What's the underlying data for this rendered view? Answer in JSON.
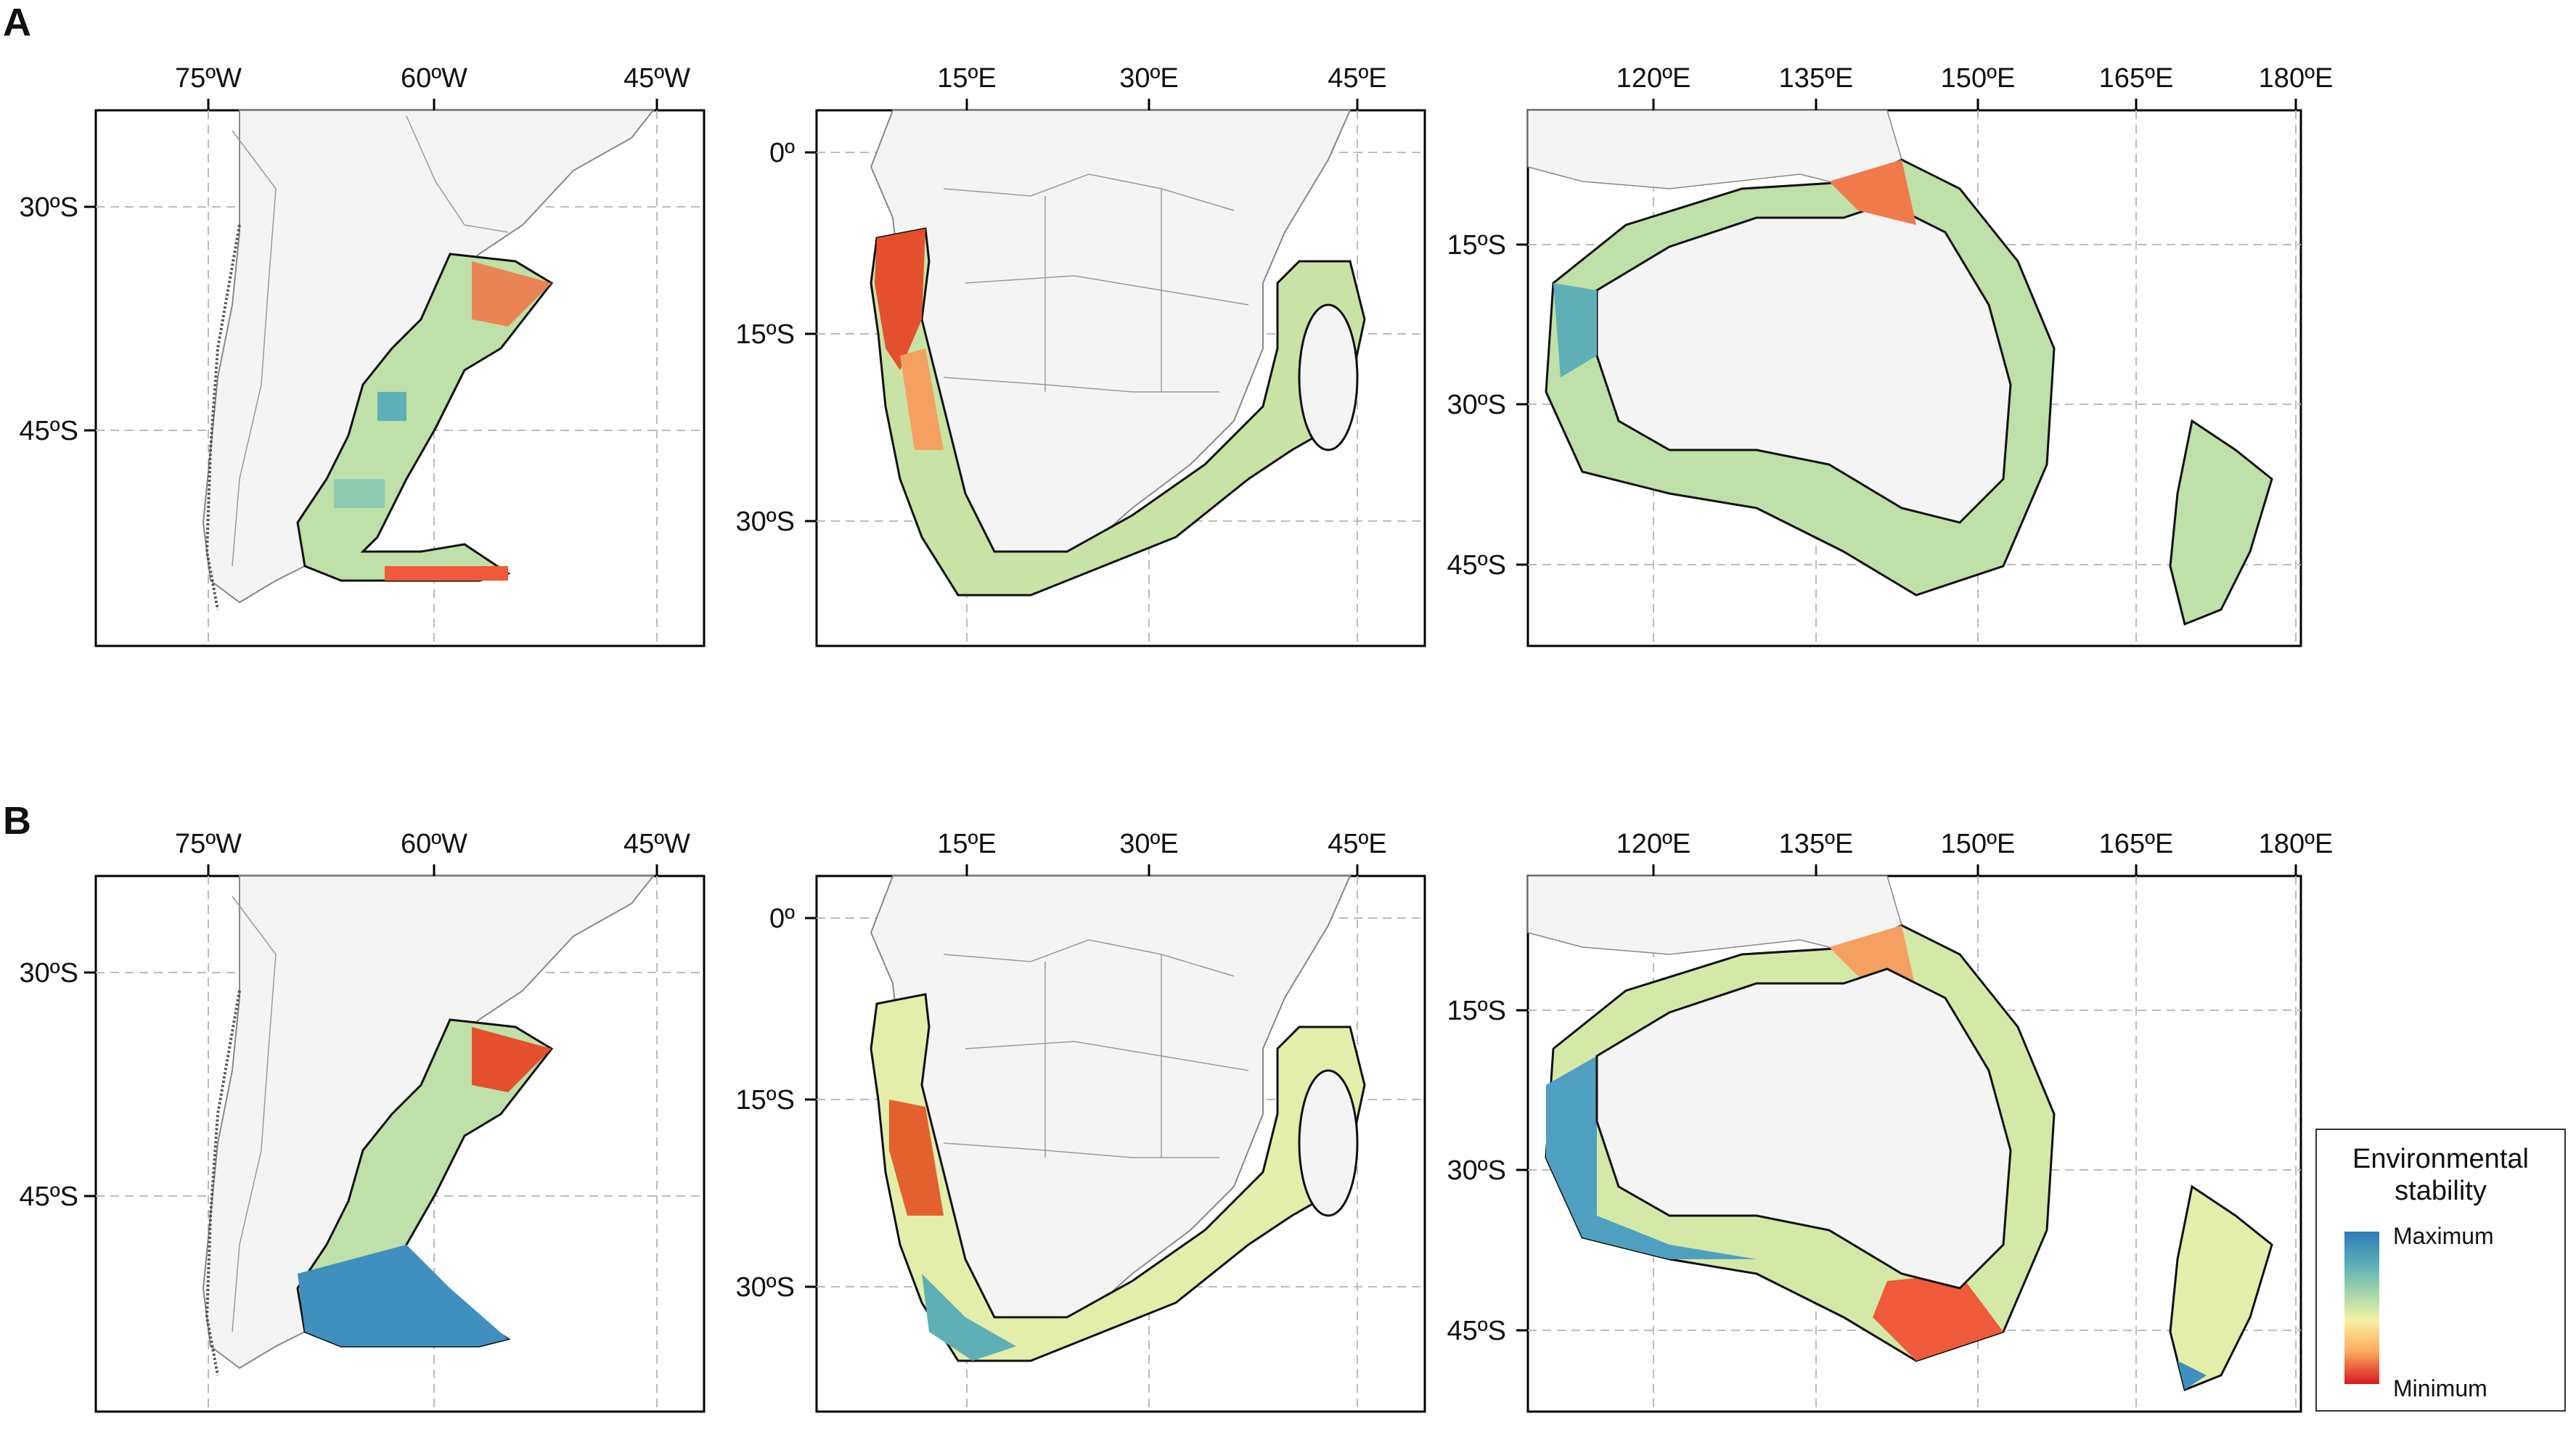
{
  "panels": [
    {
      "label": "A",
      "maps": [
        {
          "id": "south-america",
          "x_ticks": [
            "75ºW",
            "60ºW",
            "45ºW"
          ],
          "y_ticks": [
            "30ºS",
            "45ºS"
          ]
        },
        {
          "id": "southern-africa",
          "x_ticks": [
            "15ºE",
            "30ºE",
            "45ºE"
          ],
          "y_ticks": [
            "0º",
            "15ºS",
            "30ºS"
          ]
        },
        {
          "id": "australia",
          "x_ticks": [
            "120ºE",
            "135ºE",
            "150ºE",
            "165ºE",
            "180ºE"
          ],
          "y_ticks": [
            "15ºS",
            "30ºS",
            "45ºS"
          ]
        }
      ]
    },
    {
      "label": "B",
      "maps": [
        {
          "id": "south-america",
          "x_ticks": [
            "75ºW",
            "60ºW",
            "45ºW"
          ],
          "y_ticks": [
            "30ºS",
            "45ºS"
          ]
        },
        {
          "id": "southern-africa",
          "x_ticks": [
            "15ºE",
            "30ºE",
            "45ºE"
          ],
          "y_ticks": [
            "0º",
            "15ºS",
            "30ºS"
          ]
        },
        {
          "id": "australia",
          "x_ticks": [
            "120ºE",
            "135ºE",
            "150ºE",
            "165ºE",
            "180ºE"
          ],
          "y_ticks": [
            "15ºS",
            "30ºS",
            "45ºS"
          ]
        }
      ]
    }
  ],
  "legend": {
    "title": "Environmental stability",
    "max_label": "Maximum",
    "min_label": "Minimum",
    "colors": [
      "#2c7bb6",
      "#abd9a9",
      "#f4f1a6",
      "#fdae61",
      "#d7191c"
    ]
  },
  "colors": {
    "land": "#f4f4f4",
    "border": "#888888",
    "coast": "#111111",
    "grid": "#bbbbbb",
    "stable": "#2c7bb6",
    "mid": "#bfe0a8",
    "unstable": "#d7191c"
  }
}
